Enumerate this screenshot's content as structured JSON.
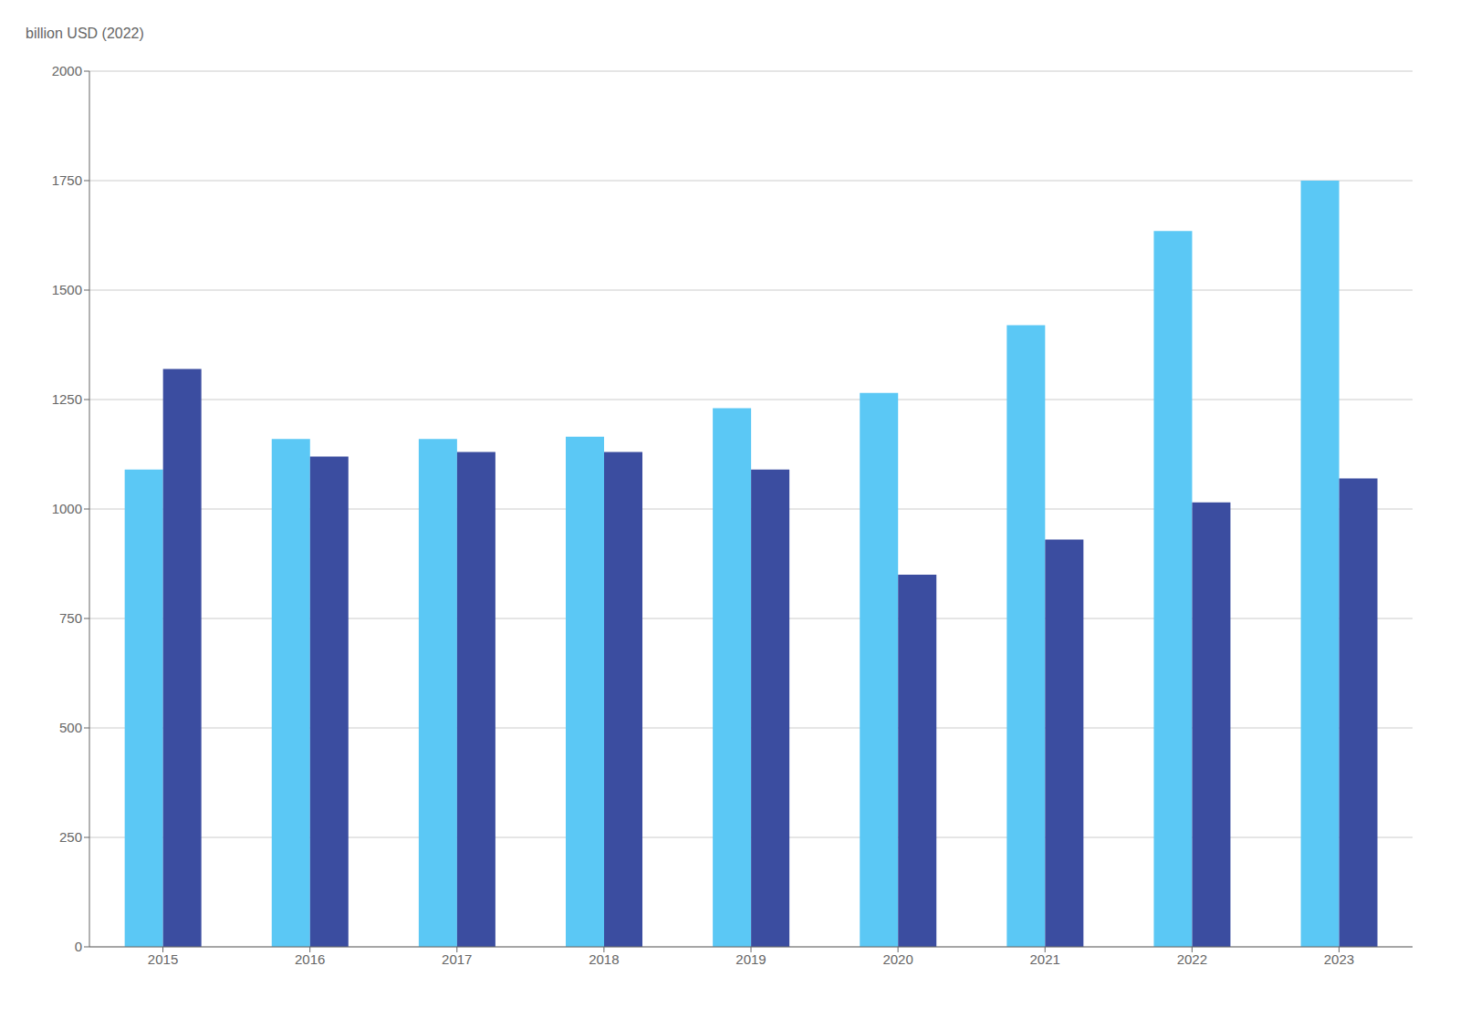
{
  "chart_data": {
    "type": "bar",
    "y_label": "billion USD (2022)",
    "categories": [
      "2015",
      "2016",
      "2017",
      "2018",
      "2019",
      "2020",
      "2021",
      "2022",
      "2023"
    ],
    "series": [
      {
        "color": "#5BC8F5",
        "values": [
          1090,
          1160,
          1160,
          1165,
          1230,
          1265,
          1420,
          1635,
          1750
        ]
      },
      {
        "color": "#3B4DA0",
        "values": [
          1320,
          1120,
          1130,
          1130,
          1090,
          850,
          930,
          1015,
          1070
        ]
      }
    ],
    "ylim": [
      0,
      2000
    ],
    "yticks": [
      0,
      250,
      500,
      750,
      1000,
      1250,
      1500,
      1750,
      2000
    ],
    "grid": true
  }
}
